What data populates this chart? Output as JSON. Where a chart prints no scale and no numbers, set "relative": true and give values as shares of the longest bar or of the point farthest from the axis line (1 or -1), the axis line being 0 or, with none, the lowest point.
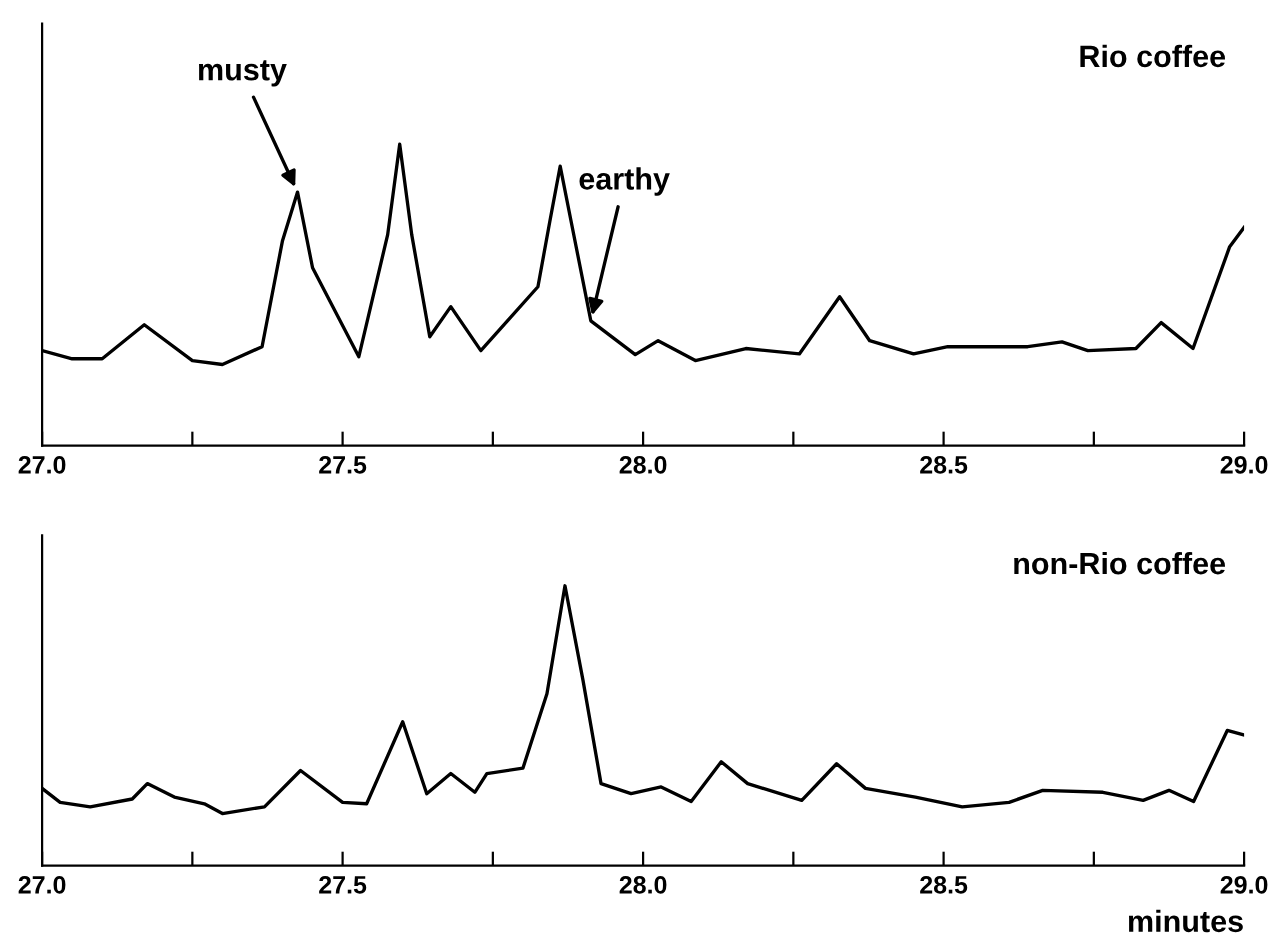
{
  "chart_data": [
    {
      "type": "line",
      "title": "Rio coffee",
      "relative": true,
      "xlim": [
        27,
        29
      ],
      "xticks": [
        {
          "value": 27,
          "label": "27.0"
        },
        {
          "value": 27.25,
          "label": null
        },
        {
          "value": 27.5,
          "label": "27.5"
        },
        {
          "value": 27.75,
          "label": null
        },
        {
          "value": 28,
          "label": "28.0"
        },
        {
          "value": 28.25,
          "label": null
        },
        {
          "value": 28.5,
          "label": "28.5"
        },
        {
          "value": 28.75,
          "label": null
        },
        {
          "value": 29,
          "label": "29.0"
        }
      ],
      "annotations": [
        {
          "text": "musty",
          "x": 27.425,
          "y": 0.841
        },
        {
          "text": "earthy",
          "x": 27.913,
          "y": 0.414
        }
      ],
      "series": [
        {
          "color": "#000000",
          "x": [
            27.0,
            27.05,
            27.1,
            27.17,
            27.25,
            27.3,
            27.366,
            27.4,
            27.425,
            27.45,
            27.527,
            27.575,
            27.595,
            27.615,
            27.645,
            27.68,
            27.73,
            27.825,
            27.845,
            27.862,
            27.88,
            27.913,
            27.987,
            28.025,
            28.087,
            28.171,
            28.26,
            28.327,
            28.377,
            28.45,
            28.507,
            28.64,
            28.697,
            28.74,
            28.82,
            28.862,
            28.915,
            28.976,
            29.0
          ],
          "values": [
            0.315,
            0.288,
            0.288,
            0.401,
            0.282,
            0.269,
            0.328,
            0.68,
            0.841,
            0.59,
            0.295,
            0.7,
            1,
            0.7,
            0.361,
            0.461,
            0.315,
            0.527,
            0.746,
            0.927,
            0.746,
            0.414,
            0.302,
            0.348,
            0.282,
            0.322,
            0.304,
            0.494,
            0.348,
            0.304,
            0.328,
            0.328,
            0.344,
            0.315,
            0.322,
            0.408,
            0.322,
            0.66,
            0.724
          ]
        }
      ],
      "grid": false,
      "legend": false,
      "marker": "none",
      "line_style": "solid"
    },
    {
      "type": "line",
      "title": "non-Rio coffee",
      "xlabel": "minutes",
      "relative": true,
      "xlim": [
        27,
        29
      ],
      "xticks": [
        {
          "value": 27,
          "label": "27.0"
        },
        {
          "value": 27.25,
          "label": null
        },
        {
          "value": 27.5,
          "label": "27.5"
        },
        {
          "value": 27.75,
          "label": null
        },
        {
          "value": 28,
          "label": "28.0"
        },
        {
          "value": 28.25,
          "label": null
        },
        {
          "value": 28.5,
          "label": "28.5"
        },
        {
          "value": 28.75,
          "label": null
        },
        {
          "value": 29,
          "label": "29.0"
        }
      ],
      "series": [
        {
          "color": "#000000",
          "x": [
            27.0,
            27.03,
            27.08,
            27.15,
            27.175,
            27.22,
            27.27,
            27.3,
            27.37,
            27.43,
            27.5,
            27.54,
            27.6,
            27.64,
            27.68,
            27.72,
            27.74,
            27.8,
            27.84,
            27.87,
            27.9,
            27.93,
            27.98,
            28.03,
            28.08,
            28.13,
            28.174,
            28.264,
            28.322,
            28.37,
            28.453,
            28.531,
            28.609,
            28.665,
            28.765,
            28.832,
            28.875,
            28.916,
            28.972,
            29.0
          ],
          "values": [
            0.276,
            0.226,
            0.21,
            0.238,
            0.293,
            0.245,
            0.221,
            0.186,
            0.21,
            0.34,
            0.226,
            0.221,
            0.514,
            0.257,
            0.329,
            0.262,
            0.329,
            0.348,
            0.614,
            1,
            0.662,
            0.293,
            0.257,
            0.281,
            0.229,
            0.371,
            0.293,
            0.233,
            0.364,
            0.276,
            0.245,
            0.21,
            0.226,
            0.269,
            0.262,
            0.233,
            0.269,
            0.229,
            0.483,
            0.467
          ]
        }
      ],
      "grid": false,
      "legend": false,
      "marker": "none",
      "line_style": "solid"
    }
  ]
}
